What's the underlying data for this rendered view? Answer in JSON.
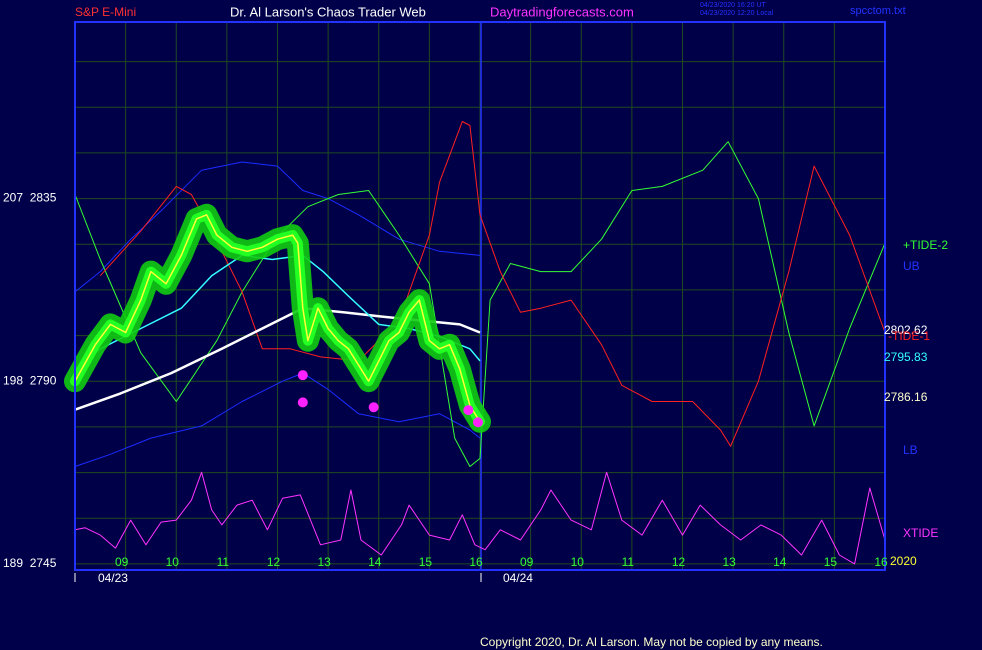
{
  "chart_data": {
    "type": "line",
    "header": {
      "symbol": {
        "text": "S&P E-Mini",
        "color": "#ff3030"
      },
      "title": {
        "text": "Dr. Al Larson's Chaos Trader Web",
        "color": "#ffffff"
      },
      "site": {
        "text": "Daytradingforecasts.com",
        "color": "#ff33ff"
      },
      "stamps": [
        "04/23/2020 16:20 UT",
        "04/23/2020 12:20 Local"
      ],
      "file": "spcctom.txt"
    },
    "copyright": "Copyright 2020, Dr. Al Larson. May not be copied by any means.",
    "dates": [
      {
        "value": 0.75,
        "label": "04/23"
      },
      {
        "value": 8.75,
        "label": "04/24"
      }
    ],
    "xlim": [
      0,
      16
    ],
    "ylim": [
      2743.5,
      2878.5
    ],
    "xticks": [
      {
        "value": 1,
        "label": "09"
      },
      {
        "value": 2,
        "label": "10"
      },
      {
        "value": 3,
        "label": "11"
      },
      {
        "value": 4,
        "label": "12"
      },
      {
        "value": 5,
        "label": "13"
      },
      {
        "value": 6,
        "label": "14"
      },
      {
        "value": 7,
        "label": "15"
      },
      {
        "value": 8,
        "label": "16"
      },
      {
        "value": 9,
        "label": "09"
      },
      {
        "value": 10,
        "label": "10"
      },
      {
        "value": 11,
        "label": "11"
      },
      {
        "value": 12,
        "label": "12"
      },
      {
        "value": 13,
        "label": "13"
      },
      {
        "value": 14,
        "label": "14"
      },
      {
        "value": 15,
        "label": "15"
      },
      {
        "value": 16,
        "label": "16"
      }
    ],
    "yticks": [
      {
        "value": 2835,
        "label": "207  2835"
      },
      {
        "value": 2790,
        "label": "198  2790"
      },
      {
        "value": 2745,
        "label": "189  2745"
      }
    ],
    "ygrid": [
      2756.25,
      2767.5,
      2778.75,
      2801.25,
      2812.5,
      2823.75,
      2846.25,
      2857.5,
      2868.75
    ],
    "day_divider": 8.02,
    "grid": true,
    "grid_color": "#1f4a1f",
    "right_labels": [
      {
        "text": "+TIDE-2",
        "color": "#33ff33"
      },
      {
        "text": "UB",
        "color": "#2233ff"
      },
      {
        "text": "2802.62",
        "color": "#ffffff"
      },
      {
        "text": "-TIDE-1",
        "color": "#ff2020"
      },
      {
        "text": "2795.83",
        "color": "#33ffff"
      },
      {
        "text": "2786.16",
        "color": "#ffffcc"
      },
      {
        "text": "LB",
        "color": "#2233ff"
      },
      {
        "text": "XTIDE",
        "color": "#ff33ff"
      },
      {
        "text": "2020",
        "color": "#ffff33"
      }
    ],
    "series": [
      {
        "color": "#1a2cff",
        "width": 1,
        "x": [
          0,
          0.5,
          1.1,
          1.7,
          2.5,
          3.3,
          4,
          4.5,
          5.0,
          5.6,
          6.4,
          7.2,
          8
        ],
        "values": [
          2812,
          2817,
          2825,
          2832,
          2842,
          2844,
          2843,
          2837,
          2835,
          2831,
          2825,
          2822,
          2821
        ]
      },
      {
        "color": "#1a2cff",
        "width": 1,
        "x": [
          0,
          0.7,
          1.5,
          2.5,
          3.3,
          4.1,
          4.5,
          5,
          5.6,
          6.4,
          7.2,
          7.8,
          8
        ],
        "values": [
          2769,
          2772,
          2776,
          2779,
          2785,
          2790,
          2792,
          2788,
          2782,
          2780,
          2782,
          2778,
          2776
        ]
      },
      {
        "color": "#33ff33",
        "width": 1,
        "x": [
          0,
          0.5,
          1.3,
          2.0,
          2.8,
          3.3,
          3.95,
          4.6,
          5.2,
          5.8,
          6.4,
          7.0,
          7.5,
          7.8,
          8.0,
          8.2,
          8.6,
          9.2,
          9.8,
          10.4,
          11.0,
          11.6,
          12.4,
          12.9,
          13.5,
          14.1,
          14.6,
          15.3,
          16
        ],
        "values": [
          2836,
          2820,
          2797,
          2785,
          2800,
          2812,
          2825,
          2833,
          2836,
          2837,
          2826,
          2814,
          2776,
          2769,
          2771,
          2810,
          2819,
          2817,
          2817,
          2825,
          2837,
          2838,
          2842,
          2849,
          2835,
          2802,
          2779,
          2803,
          2824
        ]
      },
      {
        "color": "#ff2020",
        "width": 1,
        "x": [
          0.5,
          1.3,
          2.0,
          2.3,
          2.7,
          3.3,
          3.7,
          4.25,
          4.85,
          5.6,
          6.4,
          7.0,
          7.2,
          7.65,
          7.8,
          8.0,
          8.4,
          8.8,
          9.2,
          9.8,
          10.4,
          10.8,
          11.4,
          12.2,
          12.75,
          12.95,
          13.5,
          14.1,
          14.6,
          15.3,
          16
        ],
        "values": [
          2816,
          2827,
          2838,
          2836,
          2827,
          2812,
          2798,
          2798,
          2796,
          2795,
          2805,
          2826,
          2839,
          2854,
          2853,
          2831,
          2817,
          2807,
          2808,
          2810,
          2799,
          2789,
          2785,
          2785,
          2778,
          2774,
          2790,
          2817,
          2843,
          2826,
          2802
        ]
      },
      {
        "color": "#ffffff",
        "width": 2.5,
        "x": [
          0,
          0.9,
          1.9,
          2.9,
          3.7,
          4.5,
          5.3,
          6.0,
          6.8,
          7.6,
          8
        ],
        "values": [
          2783,
          2787,
          2792,
          2798,
          2803,
          2808,
          2807,
          2806,
          2805,
          2804,
          2802
        ]
      },
      {
        "color": "#33ffff",
        "width": 1.5,
        "x": [
          0,
          0.5,
          1.3,
          2.1,
          2.7,
          3.3,
          3.9,
          4.5,
          4.9,
          5.4,
          6,
          6.6,
          7.2,
          7.8,
          8
        ],
        "values": [
          2793,
          2798,
          2803,
          2808,
          2816,
          2821,
          2820,
          2821,
          2817,
          2811,
          2804,
          2803,
          2801,
          2798,
          2795
        ]
      },
      {
        "color": "#ffff33",
        "width": 1.5,
        "glow": "#11cc11",
        "x": [
          0,
          0.4,
          0.7,
          1,
          1.3,
          1.5,
          1.8,
          2.1,
          2.4,
          2.6,
          2.8,
          3.1,
          3.4,
          3.7,
          4,
          4.3,
          4.4,
          4.5,
          4.6,
          4.8,
          5,
          5.2,
          5.4,
          5.6,
          5.8,
          6,
          6.2,
          6.4,
          6.6,
          6.8,
          7,
          7.2,
          7.4,
          7.6,
          7.8,
          8
        ],
        "values": [
          2790,
          2799,
          2804,
          2802,
          2810,
          2817,
          2814,
          2821,
          2830,
          2831,
          2826,
          2823,
          2822,
          2823,
          2825,
          2826,
          2824,
          2808,
          2800,
          2808,
          2803,
          2800,
          2798,
          2794,
          2790,
          2795,
          2800,
          2802,
          2807,
          2810,
          2800,
          2798,
          2799,
          2793,
          2784,
          2780
        ]
      },
      {
        "color": "#ff33ff",
        "width": 1,
        "x": [
          0,
          0.2,
          0.5,
          0.8,
          1.1,
          1.4,
          1.7,
          2.0,
          2.3,
          2.5,
          2.7,
          2.9,
          3.2,
          3.5,
          3.8,
          4.1,
          4.45,
          4.85,
          5.25,
          5.45,
          5.65,
          6.05,
          6.45,
          6.6,
          7.0,
          7.4,
          7.65,
          7.9,
          8.1,
          8.4,
          8.8,
          9.2,
          9.4,
          9.8,
          10.2,
          10.5,
          10.8,
          11.2,
          11.6,
          12.0,
          12.35,
          12.75,
          13.15,
          13.55,
          13.95,
          14.35,
          14.75,
          15.1,
          15.4,
          15.7,
          16
        ],
        "values": [
          2753.4,
          2753.9,
          2752.1,
          2748.9,
          2755.8,
          2749.7,
          2755.3,
          2755.8,
          2760.7,
          2767.6,
          2758.3,
          2754.6,
          2759.5,
          2760.7,
          2753.4,
          2761.2,
          2762.0,
          2749.7,
          2750.9,
          2763.2,
          2750.9,
          2747.2,
          2754.6,
          2759.5,
          2752.1,
          2750.9,
          2757.1,
          2749.7,
          2748.5,
          2753.4,
          2750.9,
          2758.3,
          2763.2,
          2755.8,
          2753.4,
          2767.6,
          2755.8,
          2752.1,
          2760.7,
          2752.1,
          2759.5,
          2754.6,
          2750.9,
          2754.6,
          2752.1,
          2747.2,
          2755.8,
          2747.2,
          2745,
          2763.7,
          2750.9
        ]
      }
    ],
    "markers": {
      "color": "#ff22ff",
      "x": [
        4.5,
        4.5,
        5.9,
        7.77,
        7.96
      ],
      "values": [
        2791.5,
        2784.8,
        2783.6,
        2782.9,
        2779.9
      ]
    }
  }
}
